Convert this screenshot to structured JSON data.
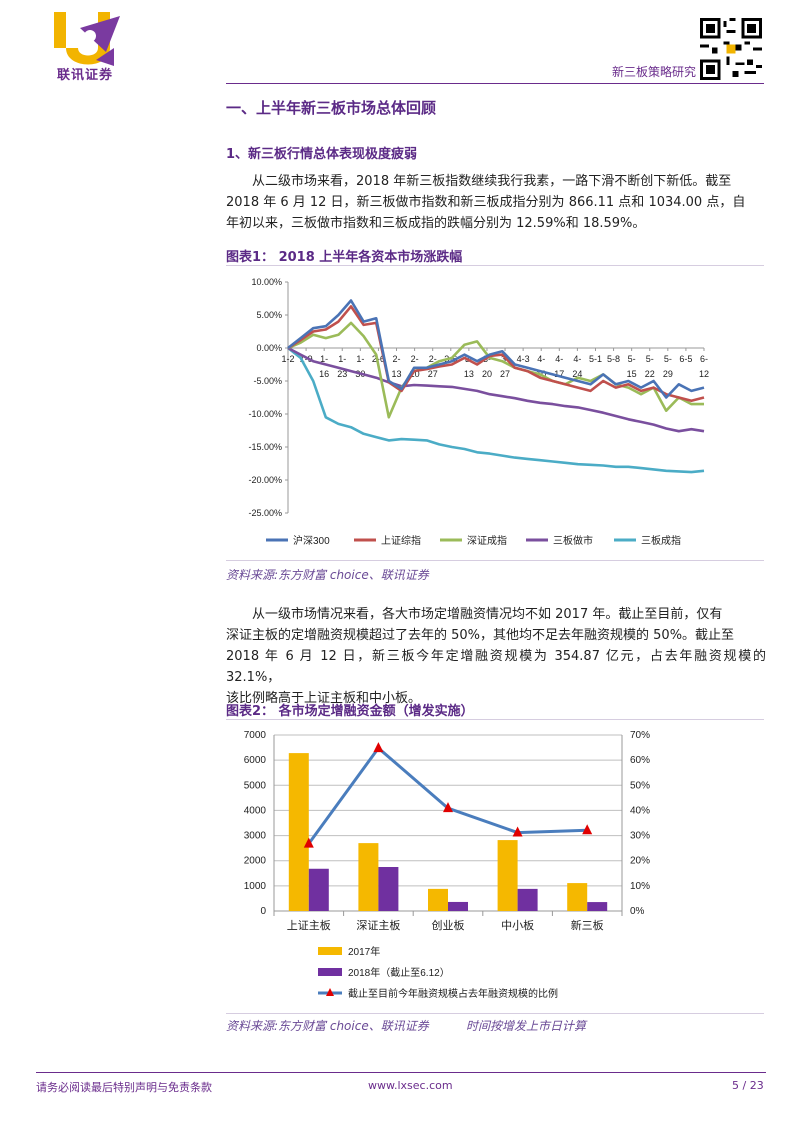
{
  "header": {
    "logo_text": "联讯证券",
    "right_label": "新三板策略研究"
  },
  "section": {
    "title": "一、上半年新三板市场总体回顾",
    "subtitle": "1、新三板行情总体表现极度疲弱",
    "para1_line1": "从二级市场来看，2018 年新三板指数继续我行我素，一路下滑不断创下新低。截至",
    "para1_line2": "2018 年 6 月 12 日，新三板做市指数和新三板成指分别为 866.11 点和 1034.00 点，自",
    "para1_line3": "年初以来，三板做市指数和三板成指的跌幅分别为 12.59%和 18.59%。",
    "para2_line1": "从一级市场情况来看，各大市场定增融资情况均不如 2017 年。截止至目前，仅有",
    "para2_line2": "深证主板的定增融资规模超过了去年的 50%，其他均不足去年融资规模的 50%。截止至",
    "para2_line3": "2018 年 6 月 12 日，新三板今年定增融资规模为 354.87 亿元，占去年融资规模的 32.1%，",
    "para2_line4": "该比例略高于上证主板和中小板。"
  },
  "figure1": {
    "label": "图表1：  2018 上半年各资本市场涨跌幅",
    "source": "资料来源:东方财富 choice、联讯证券"
  },
  "figure2": {
    "label": "图表2：  各市场定增融资金额（增发实施）",
    "source": "资料来源:东方财富 choice、联讯证券",
    "note": "时间按增发上市日计算"
  },
  "footer": {
    "disclaimer": "请务必阅读最后特别声明与免责条款",
    "site": "www.lxsec.com",
    "page": "5 / 23"
  },
  "colors": {
    "brand_purple": "#5b2a86",
    "s_hs300": "#4a73b5",
    "s_sh": "#c0504d",
    "s_sz": "#9bbb59",
    "s_mm": "#7a4f9e",
    "s_cz": "#4bacc6",
    "bar_2017": "#f5b800",
    "bar_2018": "#7030a0",
    "ratio_line": "#4a7dbd",
    "ratio_marker": "#e00000"
  },
  "chart_data": [
    {
      "type": "line",
      "yticks": [
        "10.00%",
        "5.00%",
        "0.00%",
        "-5.00%",
        "-10.00%",
        "-15.00%",
        "-20.00%",
        "-25.00%"
      ],
      "ylim": [
        -25,
        10
      ],
      "x_labels": [
        [
          "1-2",
          ""
        ],
        [
          "1-9",
          ""
        ],
        [
          "1-",
          "16"
        ],
        [
          "1-",
          "23"
        ],
        [
          "1-",
          "30"
        ],
        [
          "2-6",
          ""
        ],
        [
          "2-",
          "13"
        ],
        [
          "2-",
          "20"
        ],
        [
          "2-",
          "27"
        ],
        [
          "3-6",
          ""
        ],
        [
          "3-",
          "13"
        ],
        [
          "3-",
          "20"
        ],
        [
          "3-",
          "27"
        ],
        [
          "4-3",
          ""
        ],
        [
          "4-",
          "10"
        ],
        [
          "4-",
          "17"
        ],
        [
          "4-",
          "24"
        ],
        [
          "5-1",
          ""
        ],
        [
          "5-8",
          ""
        ],
        [
          "5-",
          "15"
        ],
        [
          "5-",
          "22"
        ],
        [
          "5-",
          "29"
        ],
        [
          "6-5",
          ""
        ],
        [
          "6-",
          "12"
        ]
      ],
      "series": [
        {
          "name": "沪深300",
          "values": [
            0,
            1.5,
            3,
            3.3,
            5,
            7.2,
            4,
            4.5,
            -5,
            -6.2,
            -3,
            -3,
            -2.5,
            -2,
            -1,
            -2,
            -1,
            -0.5,
            -2.5,
            -3,
            -3.5,
            -4,
            -4.5,
            -5,
            -5.5,
            -4,
            -5.5,
            -5,
            -6,
            -5,
            -7.5,
            -5.5,
            -6.5,
            -6
          ]
        },
        {
          "name": "上证综指",
          "values": [
            0,
            1.2,
            2.5,
            2.8,
            4,
            6.3,
            3.5,
            3.8,
            -5.2,
            -6.5,
            -3.5,
            -3.2,
            -2.8,
            -2.5,
            -1.5,
            -2.5,
            -1.2,
            -1,
            -3,
            -3.5,
            -4.5,
            -5,
            -5.5,
            -6,
            -6.5,
            -5,
            -6,
            -5.5,
            -6.5,
            -6,
            -7,
            -7.5,
            -8,
            -7.5
          ]
        },
        {
          "name": "深证成指",
          "values": [
            0,
            0.8,
            2,
            1.5,
            2,
            3.8,
            1.8,
            -1,
            -10.5,
            -6,
            -3.5,
            -3,
            -2,
            -1.5,
            0.5,
            1,
            -1.5,
            -2,
            -3,
            -3.5,
            -4,
            -5,
            -5.5,
            -4.5,
            -5,
            -4,
            -5.5,
            -6,
            -7,
            -6,
            -9.5,
            -7.5,
            -8.5,
            -8.5
          ]
        },
        {
          "name": "三板做市",
          "values": [
            0,
            -1,
            -2,
            -2.5,
            -3,
            -3.5,
            -4,
            -4.5,
            -5.2,
            -5.8,
            -5.6,
            -5.7,
            -5.8,
            -5.9,
            -6.2,
            -6.5,
            -7,
            -7.3,
            -7.6,
            -8,
            -8.3,
            -8.5,
            -8.8,
            -9,
            -9.4,
            -9.8,
            -10.3,
            -10.8,
            -11.2,
            -11.6,
            -12.2,
            -12.6,
            -12.3,
            -12.6
          ]
        },
        {
          "name": "三板成指",
          "values": [
            0,
            -1.5,
            -5,
            -10.5,
            -11.5,
            -12,
            -13,
            -13.5,
            -14,
            -13.8,
            -13.9,
            -14,
            -14.6,
            -15,
            -15.3,
            -15.8,
            -16,
            -16.3,
            -16.6,
            -16.8,
            -17,
            -17.2,
            -17.4,
            -17.6,
            -17.7,
            -17.8,
            -18,
            -18,
            -18.2,
            -18.4,
            -18.6,
            -18.7,
            -18.8,
            -18.6
          ]
        }
      ],
      "legend": "bottom"
    },
    {
      "type": "bar",
      "categories": [
        "上证主板",
        "深证主板",
        "创业板",
        "中小板",
        "新三板"
      ],
      "yticks_left": [
        "7000",
        "6000",
        "5000",
        "4000",
        "3000",
        "2000",
        "1000",
        "0"
      ],
      "yticks_right": [
        "70%",
        "60%",
        "50%",
        "40%",
        "30%",
        "20%",
        "10%",
        "0%"
      ],
      "ylim": [
        0,
        7000
      ],
      "ylim_right": [
        0,
        70
      ],
      "series": [
        {
          "name": "2017年",
          "values": [
            6280,
            2700,
            880,
            2820,
            1110
          ]
        },
        {
          "name": "2018年（截止至6.12）",
          "values": [
            1680,
            1750,
            360,
            880,
            355
          ]
        },
        {
          "name": "截止至目前今年融资规模占去年融资规模的比例",
          "values": [
            26.8,
            64.8,
            40.9,
            31.2,
            32.1
          ]
        }
      ],
      "legend": "bottom"
    }
  ]
}
